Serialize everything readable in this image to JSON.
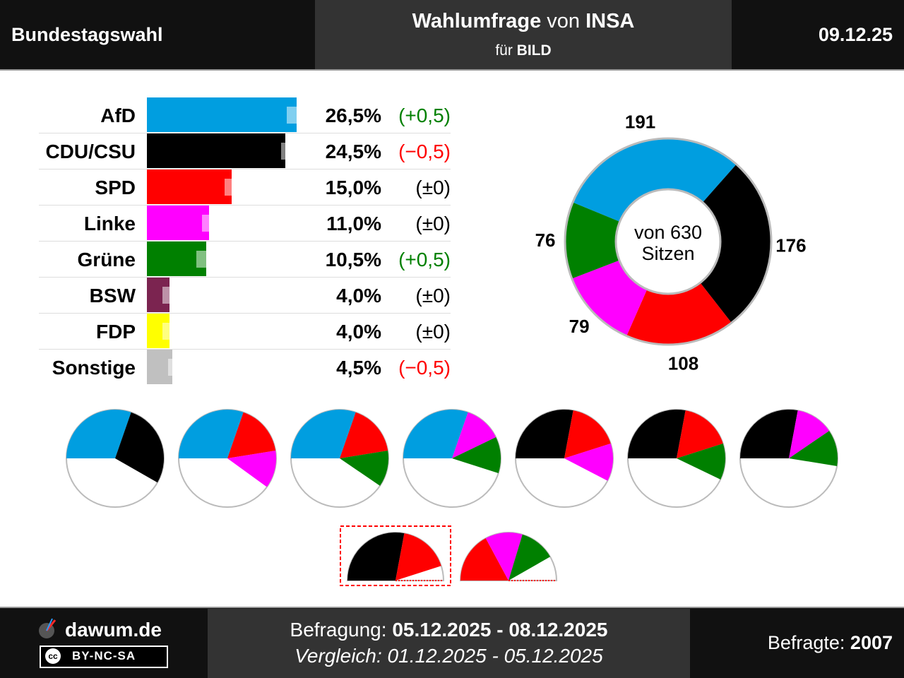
{
  "header": {
    "left": "Bundestagswahl",
    "title_bold_1": "Wahlumfrage",
    "title_mid": " von ",
    "title_bold_2": "INSA",
    "sub_pre": "für ",
    "sub_bold": "BILD",
    "date": "09.12.25"
  },
  "chart_data": [
    {
      "type": "bar",
      "orientation": "horizontal",
      "categories": [
        "AfD",
        "CDU/CSU",
        "SPD",
        "Linke",
        "Grüne",
        "BSW",
        "FDP",
        "Sonstige"
      ],
      "values": [
        26.5,
        24.5,
        15.0,
        11.0,
        10.5,
        4.0,
        4.0,
        4.5
      ],
      "previous_values": [
        26.0,
        25.0,
        15.0,
        11.0,
        10.0,
        4.0,
        4.0,
        5.0
      ],
      "value_labels": [
        "26,5%",
        "24,5%",
        "15,0%",
        "11,0%",
        "10,5%",
        "4,0%",
        "4,0%",
        "4,5%"
      ],
      "change_labels": [
        "(+0,5)",
        "(−0,5)",
        "(±0)",
        "(±0)",
        "(+0,5)",
        "(±0)",
        "(±0)",
        "(−0,5)"
      ],
      "colors": [
        "#009ee0",
        "#000000",
        "#ff0000",
        "#ff00ff",
        "#008000",
        "#7b2450",
        "#ffff00",
        "#c0c0c0"
      ],
      "change_colors": [
        "#008000",
        "#ff0000",
        "#000000",
        "#000000",
        "#008000",
        "#000000",
        "#000000",
        "#ff0000"
      ]
    },
    {
      "type": "pie",
      "variant": "donut",
      "center_label_1": "von 630",
      "center_label_2": "Sitzen",
      "categories": [
        "AfD",
        "CDU/CSU",
        "SPD",
        "Linke",
        "Grüne"
      ],
      "values": [
        191,
        176,
        108,
        79,
        76
      ],
      "colors": [
        "#009ee0",
        "#000000",
        "#ff0000",
        "#ff00ff",
        "#008000"
      ]
    },
    {
      "type": "pie",
      "variant": "coalition-semicircles",
      "coalitions": [
        {
          "parties": [
            "AfD",
            "CDU/CSU"
          ],
          "seats": [
            191,
            176
          ],
          "colors": [
            "#009ee0",
            "#000000"
          ],
          "highlighted": false
        },
        {
          "parties": [
            "AfD",
            "SPD",
            "Linke"
          ],
          "seats": [
            191,
            108,
            79
          ],
          "colors": [
            "#009ee0",
            "#ff0000",
            "#ff00ff"
          ],
          "highlighted": false
        },
        {
          "parties": [
            "AfD",
            "SPD",
            "Grüne"
          ],
          "seats": [
            191,
            108,
            76
          ],
          "colors": [
            "#009ee0",
            "#ff0000",
            "#008000"
          ],
          "highlighted": false
        },
        {
          "parties": [
            "AfD",
            "Linke",
            "Grüne"
          ],
          "seats": [
            191,
            79,
            76
          ],
          "colors": [
            "#009ee0",
            "#ff00ff",
            "#008000"
          ],
          "highlighted": false
        },
        {
          "parties": [
            "CDU/CSU",
            "SPD",
            "Linke"
          ],
          "seats": [
            176,
            108,
            79
          ],
          "colors": [
            "#000000",
            "#ff0000",
            "#ff00ff"
          ],
          "highlighted": false
        },
        {
          "parties": [
            "CDU/CSU",
            "SPD",
            "Grüne"
          ],
          "seats": [
            176,
            108,
            76
          ],
          "colors": [
            "#000000",
            "#ff0000",
            "#008000"
          ],
          "highlighted": false
        },
        {
          "parties": [
            "CDU/CSU",
            "Linke",
            "Grüne"
          ],
          "seats": [
            176,
            79,
            76
          ],
          "colors": [
            "#000000",
            "#ff00ff",
            "#008000"
          ],
          "highlighted": false
        },
        {
          "parties": [
            "CDU/CSU",
            "SPD"
          ],
          "seats": [
            176,
            108
          ],
          "colors": [
            "#000000",
            "#ff0000"
          ],
          "highlighted": true
        },
        {
          "parties": [
            "SPD",
            "Linke",
            "Grüne"
          ],
          "seats": [
            108,
            79,
            76
          ],
          "colors": [
            "#ff0000",
            "#ff00ff",
            "#008000"
          ],
          "highlighted": false
        }
      ],
      "total_seats": 630
    }
  ],
  "footer": {
    "brand": "dawum.de",
    "license_icon": "cc",
    "license": "BY-NC-SA",
    "befragung_label": "Befragung: ",
    "befragung_dates": "05.12.2025 - 08.12.2025",
    "vergleich": "Vergleich: 01.12.2025 - 05.12.2025",
    "befragte_label": "Befragte: ",
    "befragte_value": "2007"
  }
}
